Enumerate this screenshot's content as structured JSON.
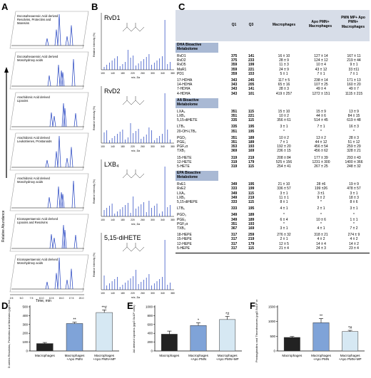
{
  "panels": {
    "A": "A",
    "B": "B",
    "C": "C",
    "D": "D",
    "E": "E",
    "F": "F"
  },
  "panelA": {
    "y_axis_label": "Relative Abundance",
    "x_axis_label": "Time, min",
    "x_ticks": [
      "2.5",
      "5.0",
      "7.5",
      "10.0",
      "12.5",
      "15.0",
      "17.5",
      "20.0"
    ],
    "tracks": [
      {
        "label": "Docosahexaenoic Acid derived Resolvins, Protectins and Maresins"
      },
      {
        "label": "Docosahexaenoic Acid derived Monohydroxy acids"
      },
      {
        "label": "Arachidonic Acid derived Lipoxins"
      },
      {
        "label": "Arachidonic Acid derived Leukotrienes, Prostanoids"
      },
      {
        "label": "Arachidonic Acid derived Monohydroxy acids"
      },
      {
        "label": "Eicosapentaenoic Acid derived Lipoxins and Resolvins"
      },
      {
        "label": "Eicosapentaenoic Acid derived Monohydroxy acids"
      }
    ]
  },
  "panelB": {
    "y_axis_label": "Relative Intensity (%)",
    "x_axis_label": "m/z, Da",
    "x_ticks": [
      "100",
      "140",
      "180",
      "220",
      "260",
      "300",
      "340",
      "380"
    ],
    "spectra": [
      {
        "name": "RvD1"
      },
      {
        "name": "RvD2"
      },
      {
        "name": "LXB₄"
      },
      {
        "name": "5,15-diHETE"
      }
    ]
  },
  "tableC": {
    "headers": [
      "Q1",
      "Q3",
      "Macrophages",
      "Apo PMN+ Macrophages",
      "PMN MP+ Apo PMN+ Macrophages"
    ],
    "sections": [
      {
        "title": "DHA Bioactive Metabolome",
        "rows": [
          [
            "RvD1",
            "375",
            "141",
            "16 ± 10",
            "127 ± 14",
            "167 ± 11"
          ],
          [
            "RvD2",
            "375",
            "233",
            "28 ± 9",
            "124 ± 12",
            "219 ± 44"
          ],
          [
            "RvD5",
            "359",
            "199",
            "11 ± 3",
            "10 ± 4",
            "9 ± 1"
          ],
          [
            "MaR1",
            "359",
            "221",
            "24 ± 9",
            "43 ± 12",
            "33 ±11"
          ],
          [
            "PD1",
            "359",
            "153",
            "5 ± 1",
            "7 ± 1",
            "7 ± 1"
          ],
          [
            "",
            "",
            "",
            "",
            "",
            ""
          ],
          [
            "17-HDHA",
            "343",
            "245",
            "117 ± 5",
            "238 ± 14",
            "171 ± 13"
          ],
          [
            "14-HDHA",
            "343",
            "205",
            "65 ± 16",
            "107 ± 25",
            "160 ± 20"
          ],
          [
            "7-HDHA",
            "343",
            "141",
            "28 ± 3",
            "49 ± 4",
            "49 ± 7"
          ],
          [
            "4-HDHA",
            "343",
            "101",
            "419 ± 257",
            "1272 ± 151",
            "1115 ± 215"
          ]
        ]
      },
      {
        "title": "AA Bioactive Metabolome",
        "rows": [
          [
            "LXA₄",
            "351",
            "115",
            "15 ± 10",
            "15 ± 9",
            "13 ± 9"
          ],
          [
            "LXB₄",
            "351",
            "221",
            "10 ± 2",
            "44 ± 6",
            "84 ± 15"
          ],
          [
            "5,15-diHETE",
            "335",
            "115",
            "356 ± 61",
            "514 ± 45",
            "619 ± 48"
          ],
          [
            "",
            "",
            "",
            "",
            "",
            ""
          ],
          [
            "LTB₄",
            "335",
            "195",
            "3 ± 1",
            "7 ± 1",
            "16 ± 3"
          ],
          [
            "20-OH-LTB₄",
            "351",
            "195",
            "*",
            "*",
            "*"
          ],
          [
            "",
            "",
            "",
            "",
            "",
            ""
          ],
          [
            "PGD₂",
            "351",
            "189",
            "10 ± 2",
            "13 ± 2",
            "28 ± 3"
          ],
          [
            "PGE₂",
            "351",
            "189",
            "7 ± 1",
            "44 ± 12",
            "51 ± 12"
          ],
          [
            "PGF₂α",
            "353",
            "193",
            "192 ± 20",
            "456 ± 54",
            "259 ± 29"
          ],
          [
            "TXB₂",
            "369",
            "169",
            "236 ± 15",
            "456 ± 62",
            "328 ± 21"
          ],
          [
            "",
            "",
            "",
            "",
            "",
            ""
          ],
          [
            "15-HETE",
            "319",
            "219",
            "208 ± 84",
            "177 ± 39",
            "293 ± 43"
          ],
          [
            "12-HETE",
            "319",
            "179",
            "525 ± 156",
            "1231 ± 300",
            "1400 ± 366"
          ],
          [
            "5-HETE",
            "319",
            "115",
            "254 ± 41",
            "267 ± 25",
            "248 ± 32"
          ]
        ]
      },
      {
        "title": "EPA Bioactive Metabolome",
        "rows": [
          [
            "RvE1",
            "349",
            "195",
            "21 ± 10",
            "28 ±6",
            "19 ± 9"
          ],
          [
            "RvE2",
            "333",
            "199",
            "336 ± 57",
            "199 ±26",
            "478 ± 57"
          ],
          [
            "LXA₅",
            "349",
            "115",
            "3 ± 1",
            "3 ±1",
            "3 ± 1"
          ],
          [
            "LXB₅",
            "349",
            "219",
            "11 ± 1",
            "9 ± 2",
            "18 ± 3"
          ],
          [
            "5,15-diHEPE",
            "333",
            "115",
            "8 ± 1",
            "*",
            "8 ± 6"
          ],
          [
            "",
            "",
            "",
            "",
            "",
            ""
          ],
          [
            "LTB₅",
            "333",
            "195",
            "4 ± 1",
            "2 ± 1",
            "3 ± 1"
          ],
          [
            "",
            "",
            "",
            "",
            "",
            ""
          ],
          [
            "PGD₃",
            "349",
            "189",
            "*",
            "*",
            "*"
          ],
          [
            "PGE₃",
            "349",
            "189",
            "6 ± 4",
            "10 ± 6",
            "1 ± 1"
          ],
          [
            "PGF₃α",
            "351",
            "193",
            "*",
            "*",
            "*"
          ],
          [
            "TXB₃",
            "367",
            "169",
            "3 ± 1",
            "4 ± 1",
            "7 ± 2"
          ],
          [
            "",
            "",
            "",
            "",
            "",
            ""
          ],
          [
            "18-HEPE",
            "317",
            "259",
            "276 ± 32",
            "318 ± 21",
            "274 ± 9"
          ],
          [
            "15-HEPE",
            "317",
            "219",
            "2 ± 1",
            "4 ± 2",
            "4 ± 2"
          ],
          [
            "12-HEPE",
            "317",
            "179",
            "12 ± 5",
            "14 ± 4",
            "14 ± 2"
          ],
          [
            "5-HEPE",
            "317",
            "115",
            "21 ± 4",
            "24 ± 3",
            "23 ± 4"
          ]
        ]
      }
    ]
  },
  "chart_data": [
    {
      "type": "bar",
      "panel": "D",
      "ylabel": "D-series Resolvins, Protectins and Maresins (pg/2.5x10⁶ cells)",
      "categories": [
        "Macrophages",
        "Macrophages +Apo PMN",
        "Macrophages +Apo PMN+MP"
      ],
      "values": [
        84,
        311,
        435
      ],
      "errors": [
        12,
        14,
        30
      ],
      "significance": [
        "",
        "**",
        "**#"
      ],
      "ylim": [
        0,
        500
      ],
      "yticks": [
        "0",
        "100",
        "200",
        "300",
        "400",
        "500"
      ],
      "colors": [
        "#222222",
        "#7fa3d8",
        "#d6e8f3"
      ]
    },
    {
      "type": "bar",
      "panel": "E",
      "ylabel": "AA derived Lipoxins (pg/2.5x10⁶ cells)",
      "categories": [
        "Macrophages",
        "Macrophages +Apo PMN",
        "Macrophages +Apo PMN+MP"
      ],
      "values": [
        380,
        577,
        712
      ],
      "errors": [
        70,
        60,
        70
      ],
      "significance": [
        "",
        "*",
        "*#"
      ],
      "ylim": [
        0,
        1000
      ],
      "yticks": [
        "0",
        "200",
        "400",
        "600",
        "800",
        "1000"
      ],
      "colors": [
        "#222222",
        "#7fa3d8",
        "#d6e8f3"
      ]
    },
    {
      "type": "bar",
      "panel": "F",
      "ylabel": "Prostaglandins and Thromboxanes (pg/2.5x10⁶ cells)",
      "categories": [
        "Macrophages",
        "Macrophages +Apo PMN",
        "Macrophages +Apo PMN+MP"
      ],
      "values": [
        460,
        960,
        660
      ],
      "errors": [
        30,
        140,
        40
      ],
      "significance": [
        "",
        "**",
        "*#"
      ],
      "ylim": [
        0,
        1500
      ],
      "yticks": [
        "0",
        "500",
        "1000",
        "1500"
      ],
      "colors": [
        "#222222",
        "#7fa3d8",
        "#d6e8f3"
      ]
    }
  ]
}
